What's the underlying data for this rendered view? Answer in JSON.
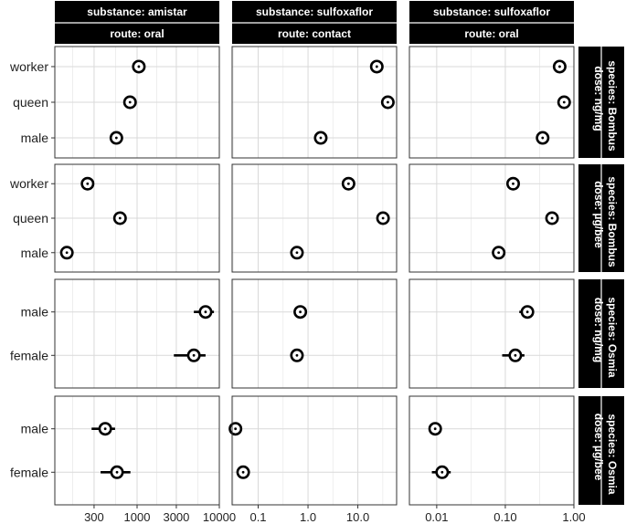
{
  "chart_data": {
    "type": "scatter",
    "description_style": "faceted dot plot with error bars, log-scaled x axes",
    "columns": [
      {
        "substance": "substance: amistar",
        "route": "route: oral",
        "x_scale": "log",
        "xlim": [
          100,
          10000
        ],
        "ticks": [
          300,
          1000,
          3000,
          10000
        ],
        "tick_labels": [
          "300",
          "1000",
          "3000",
          "10000"
        ]
      },
      {
        "substance": "substance: sulfoxaflor",
        "route": "route: contact",
        "x_scale": "log",
        "xlim": [
          0.03,
          60
        ],
        "ticks": [
          0.1,
          1,
          10
        ],
        "tick_labels": [
          "0.1",
          "1.0",
          "10.0"
        ]
      },
      {
        "substance": "substance: sulfoxaflor",
        "route": "route: oral",
        "x_scale": "log",
        "xlim": [
          0.004,
          1
        ],
        "ticks": [
          0.01,
          0.1,
          1
        ],
        "tick_labels": [
          "0.01",
          "0.10",
          "1.00"
        ]
      }
    ],
    "rows": [
      {
        "species": "species: Bombus",
        "dose": "dose: ng/mg",
        "categories": [
          "worker",
          "queen",
          "male"
        ],
        "panels": [
          [
            {
              "category": "worker",
              "value": 1050,
              "low": 1050,
              "high": 1050
            },
            {
              "category": "queen",
              "value": 820,
              "low": 700,
              "high": 950
            },
            {
              "category": "male",
              "value": 560,
              "low": 560,
              "high": 560
            }
          ],
          [
            {
              "category": "worker",
              "value": 24,
              "low": 24,
              "high": 24
            },
            {
              "category": "queen",
              "value": 40,
              "low": 40,
              "high": 40
            },
            {
              "category": "male",
              "value": 1.8,
              "low": 1.8,
              "high": 1.8
            }
          ],
          [
            {
              "category": "worker",
              "value": 0.62,
              "low": 0.62,
              "high": 0.62
            },
            {
              "category": "queen",
              "value": 0.72,
              "low": 0.72,
              "high": 0.72
            },
            {
              "category": "male",
              "value": 0.35,
              "low": 0.35,
              "high": 0.35
            }
          ]
        ]
      },
      {
        "species": "species: Bombus",
        "dose": "dose: µg/bee",
        "categories": [
          "worker",
          "queen",
          "male"
        ],
        "panels": [
          [
            {
              "category": "worker",
              "value": 250,
              "low": 250,
              "high": 250
            },
            {
              "category": "queen",
              "value": 620,
              "low": 520,
              "high": 720
            },
            {
              "category": "male",
              "value": 140,
              "low": 140,
              "high": 140
            }
          ],
          [
            {
              "category": "worker",
              "value": 6.5,
              "low": 6.5,
              "high": 6.5
            },
            {
              "category": "queen",
              "value": 32,
              "low": 32,
              "high": 32
            },
            {
              "category": "male",
              "value": 0.6,
              "low": 0.6,
              "high": 0.6
            }
          ],
          [
            {
              "category": "worker",
              "value": 0.13,
              "low": 0.13,
              "high": 0.13
            },
            {
              "category": "queen",
              "value": 0.48,
              "low": 0.48,
              "high": 0.48
            },
            {
              "category": "male",
              "value": 0.08,
              "low": 0.08,
              "high": 0.08
            }
          ]
        ]
      },
      {
        "species": "species: Osmia",
        "dose": "dose: ng/mg",
        "categories": [
          "male",
          "female"
        ],
        "panels": [
          [
            {
              "category": "male",
              "value": 6800,
              "low": 4900,
              "high": 8600
            },
            {
              "category": "female",
              "value": 4900,
              "low": 2800,
              "high": 6800
            }
          ],
          [
            {
              "category": "male",
              "value": 0.7,
              "low": 0.63,
              "high": 0.78
            },
            {
              "category": "female",
              "value": 0.6,
              "low": 0.55,
              "high": 0.66
            }
          ],
          [
            {
              "category": "male",
              "value": 0.21,
              "low": 0.16,
              "high": 0.26
            },
            {
              "category": "female",
              "value": 0.14,
              "low": 0.09,
              "high": 0.19
            }
          ]
        ]
      },
      {
        "species": "species: Osmia",
        "dose": "dose: µg/bee",
        "categories": [
          "male",
          "female"
        ],
        "panels": [
          [
            {
              "category": "male",
              "value": 410,
              "low": 280,
              "high": 540
            },
            {
              "category": "female",
              "value": 570,
              "low": 360,
              "high": 830
            }
          ],
          [
            {
              "category": "male",
              "value": 0.035,
              "low": 0.031,
              "high": 0.039
            },
            {
              "category": "female",
              "value": 0.05,
              "low": 0.045,
              "high": 0.056
            }
          ],
          [
            {
              "category": "male",
              "value": 0.0095,
              "low": 0.0078,
              "high": 0.011
            },
            {
              "category": "female",
              "value": 0.012,
              "low": 0.0085,
              "high": 0.016
            }
          ]
        ]
      }
    ],
    "grid": true,
    "legend": "none"
  }
}
